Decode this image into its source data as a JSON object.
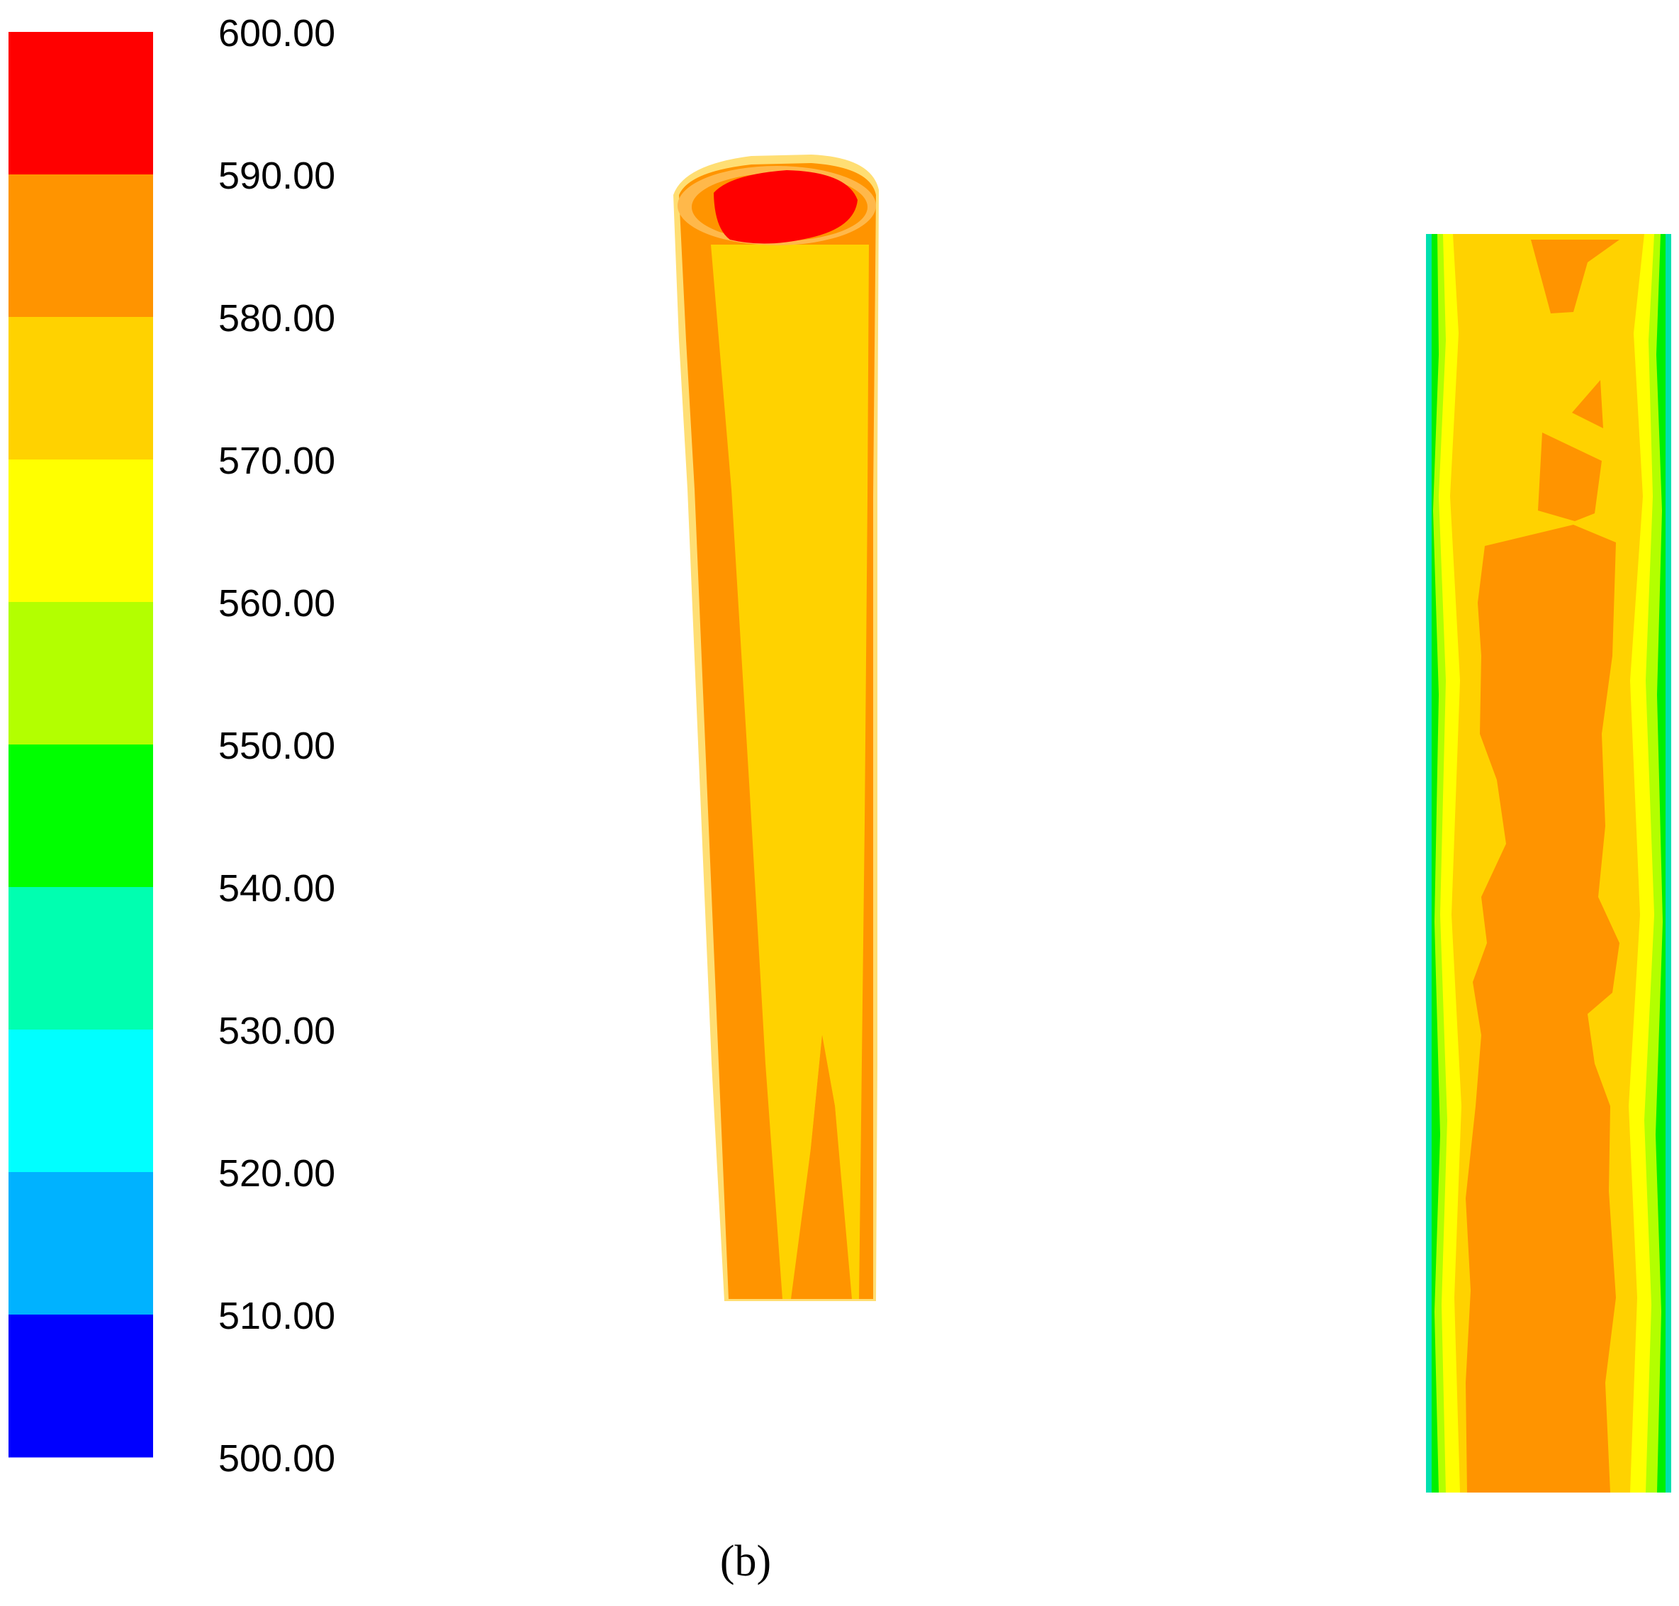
{
  "chart_data": {
    "type": "heatmap",
    "colorbar": {
      "tick_labels": [
        "600.00",
        "590.00",
        "580.00",
        "570.00",
        "560.00",
        "550.00",
        "540.00",
        "530.00",
        "520.00",
        "510.00",
        "500.00"
      ],
      "range": [
        500,
        600
      ],
      "bands": [
        {
          "from": 590,
          "to": 600,
          "color": "#FF0000"
        },
        {
          "from": 580,
          "to": 590,
          "color": "#FF9400"
        },
        {
          "from": 570,
          "to": 580,
          "color": "#FFD200"
        },
        {
          "from": 560,
          "to": 570,
          "color": "#FFFF00"
        },
        {
          "from": 550,
          "to": 560,
          "color": "#B3FF00"
        },
        {
          "from": 540,
          "to": 550,
          "color": "#00FF00"
        },
        {
          "from": 530,
          "to": 540,
          "color": "#00FFB0"
        },
        {
          "from": 520,
          "to": 530,
          "color": "#00FFFF"
        },
        {
          "from": 510,
          "to": 520,
          "color": "#00B2FF"
        },
        {
          "from": 500,
          "to": 510,
          "color": "#0000FF"
        }
      ]
    },
    "panels": [
      {
        "view": "3d-tube",
        "regions": [
          {
            "part": "top-core",
            "range": [
              590,
              600
            ]
          },
          {
            "part": "rim-and-left-side",
            "range": [
              580,
              590
            ]
          },
          {
            "part": "front-face",
            "range": [
              570,
              580
            ]
          },
          {
            "part": "outer-halo",
            "range": [
              570,
              580
            ]
          }
        ]
      },
      {
        "view": "longitudinal-section",
        "regions": [
          {
            "part": "core",
            "range": [
              580,
              590
            ]
          },
          {
            "part": "mid-layer",
            "range": [
              570,
              580
            ]
          },
          {
            "part": "near-wall",
            "range": [
              560,
              570
            ]
          },
          {
            "part": "wall-edge",
            "range": [
              540,
              560
            ]
          },
          {
            "part": "outer-wall-trace",
            "range": [
              530,
              540
            ]
          }
        ]
      }
    ],
    "caption": "(b)"
  }
}
